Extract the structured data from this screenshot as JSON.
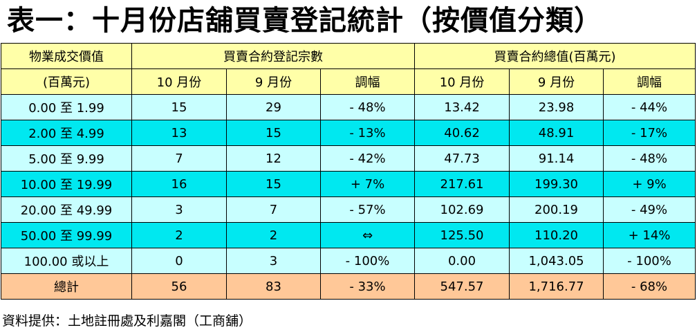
{
  "title": "表一：十月份店舖買賣登記統計（按價值分類）",
  "header": {
    "range_label_1": "物業成交價值",
    "range_label_2": "(百萬元)",
    "group_count": "買賣合約登記宗數",
    "group_value": "買賣合約總值(百萬元)",
    "oct": "10 月份",
    "sep": "9 月份",
    "change": "調幅"
  },
  "rows": [
    {
      "range": "0.00 至 1.99",
      "c_oct": "15",
      "c_sep": "29",
      "c_chg": "- 48%",
      "v_oct": "13.42",
      "v_sep": "23.98",
      "v_chg": "- 44%"
    },
    {
      "range": "2.00 至 4.99",
      "c_oct": "13",
      "c_sep": "15",
      "c_chg": "- 13%",
      "v_oct": "40.62",
      "v_sep": "48.91",
      "v_chg": "- 17%"
    },
    {
      "range": "5.00 至 9.99",
      "c_oct": "7",
      "c_sep": "12",
      "c_chg": "- 42%",
      "v_oct": "47.73",
      "v_sep": "91.14",
      "v_chg": "- 48%"
    },
    {
      "range": "10.00 至 19.99",
      "c_oct": "16",
      "c_sep": "15",
      "c_chg": "+ 7%",
      "v_oct": "217.61",
      "v_sep": "199.30",
      "v_chg": "+ 9%"
    },
    {
      "range": "20.00 至 49.99",
      "c_oct": "3",
      "c_sep": "7",
      "c_chg": "- 57%",
      "v_oct": "102.69",
      "v_sep": "200.19",
      "v_chg": "- 49%"
    },
    {
      "range": "50.00 至 99.99",
      "c_oct": "2",
      "c_sep": "2",
      "c_chg": "⇔",
      "v_oct": "125.50",
      "v_sep": "110.20",
      "v_chg": "+ 14%"
    },
    {
      "range": "100.00 或以上",
      "c_oct": "0",
      "c_sep": "3",
      "c_chg": "- 100%",
      "v_oct": "0.00",
      "v_sep": "1,043.05",
      "v_chg": "- 100%"
    }
  ],
  "total": {
    "label": "總計",
    "c_oct": "56",
    "c_sep": "83",
    "c_chg": "- 33%",
    "v_oct": "547.57",
    "v_sep": "1,716.77",
    "v_chg": "- 68%"
  },
  "footer": "資料提供：土地註冊處及利嘉閣（工商舖）",
  "colors": {
    "header_bg": "#ffffa8",
    "row_light_bg": "#c8ffff",
    "row_dark_bg": "#00e8f0",
    "total_bg": "#ffc898"
  }
}
